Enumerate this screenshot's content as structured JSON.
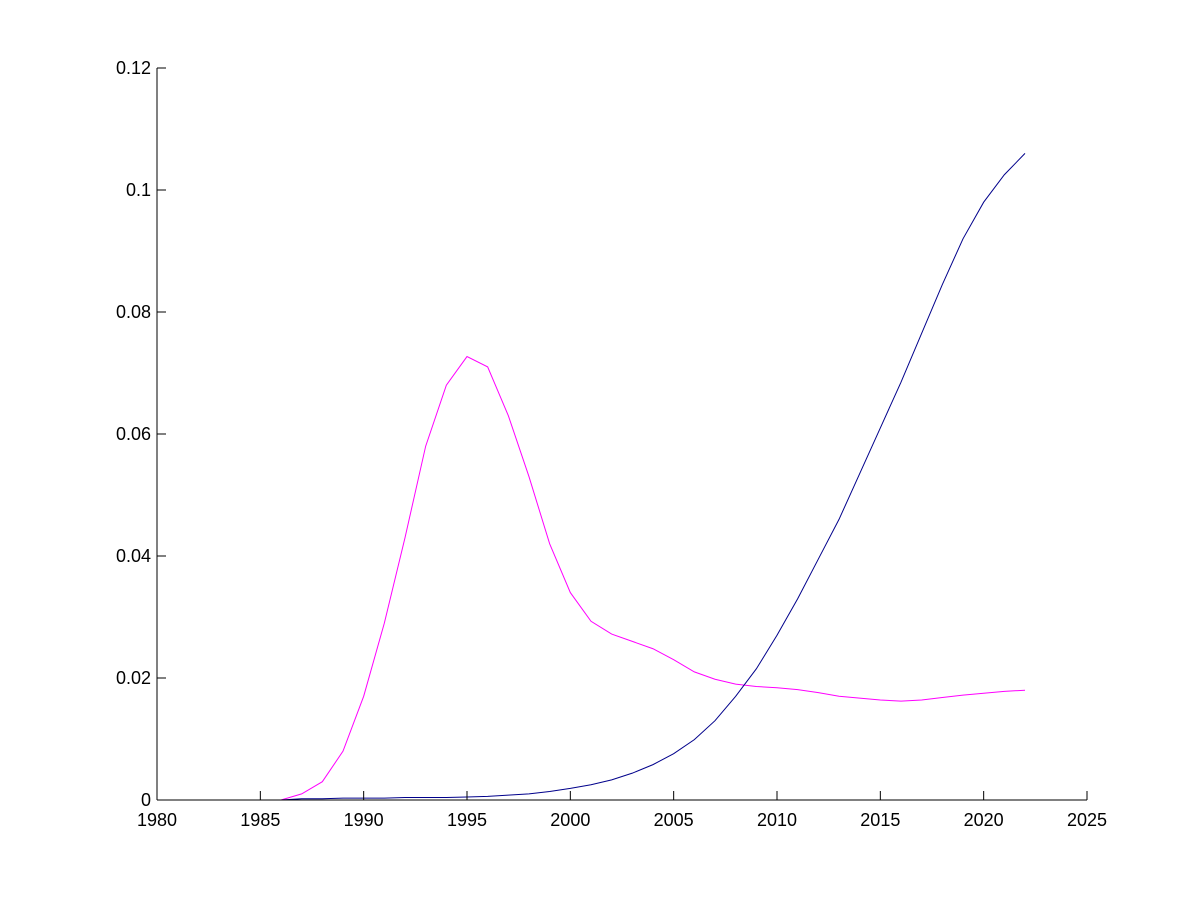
{
  "chart_data": {
    "type": "line",
    "x": [
      1980,
      1981,
      1982,
      1983,
      1984,
      1985,
      1986,
      1987,
      1988,
      1989,
      1990,
      1991,
      1992,
      1993,
      1994,
      1995,
      1996,
      1997,
      1998,
      1999,
      2000,
      2001,
      2002,
      2003,
      2004,
      2005,
      2006,
      2007,
      2008,
      2009,
      2010,
      2011,
      2012,
      2013,
      2014,
      2015,
      2016,
      2017,
      2018,
      2019,
      2020,
      2021,
      2022
    ],
    "series": [
      {
        "color": "#ff00ff",
        "values": [
          0,
          0,
          0,
          0,
          0,
          0,
          0,
          0.001,
          0.003,
          0.008,
          0.017,
          0.029,
          0.043,
          0.058,
          0.068,
          0.0727,
          0.071,
          0.063,
          0.053,
          0.042,
          0.034,
          0.0293,
          0.0272,
          0.026,
          0.0248,
          0.023,
          0.021,
          0.0198,
          0.019,
          0.0186,
          0.0184,
          0.0181,
          0.0176,
          0.017,
          0.0167,
          0.0164,
          0.0162,
          0.0164,
          0.0168,
          0.0172,
          0.0175,
          0.0178,
          0.018
        ]
      },
      {
        "color": "#00008b",
        "values": [
          0,
          0,
          0,
          0,
          0,
          0,
          0,
          0.0002,
          0.0002,
          0.0003,
          0.0003,
          0.0003,
          0.0004,
          0.0004,
          0.0004,
          0.0005,
          0.0006,
          0.0008,
          0.001,
          0.0014,
          0.0019,
          0.0025,
          0.0033,
          0.0044,
          0.0058,
          0.0076,
          0.0099,
          0.013,
          0.017,
          0.0215,
          0.027,
          0.033,
          0.0395,
          0.046,
          0.0535,
          0.061,
          0.0685,
          0.0765,
          0.0845,
          0.092,
          0.098,
          0.1025,
          0.106
        ]
      }
    ],
    "xlim": [
      1980,
      2025
    ],
    "xticks": [
      1980,
      1985,
      1990,
      1995,
      2000,
      2005,
      2010,
      2015,
      2020,
      2025
    ],
    "ylim": [
      0,
      0.12
    ],
    "yticks": [
      0,
      0.02,
      0.04,
      0.06,
      0.08,
      0.1,
      0.12
    ]
  }
}
